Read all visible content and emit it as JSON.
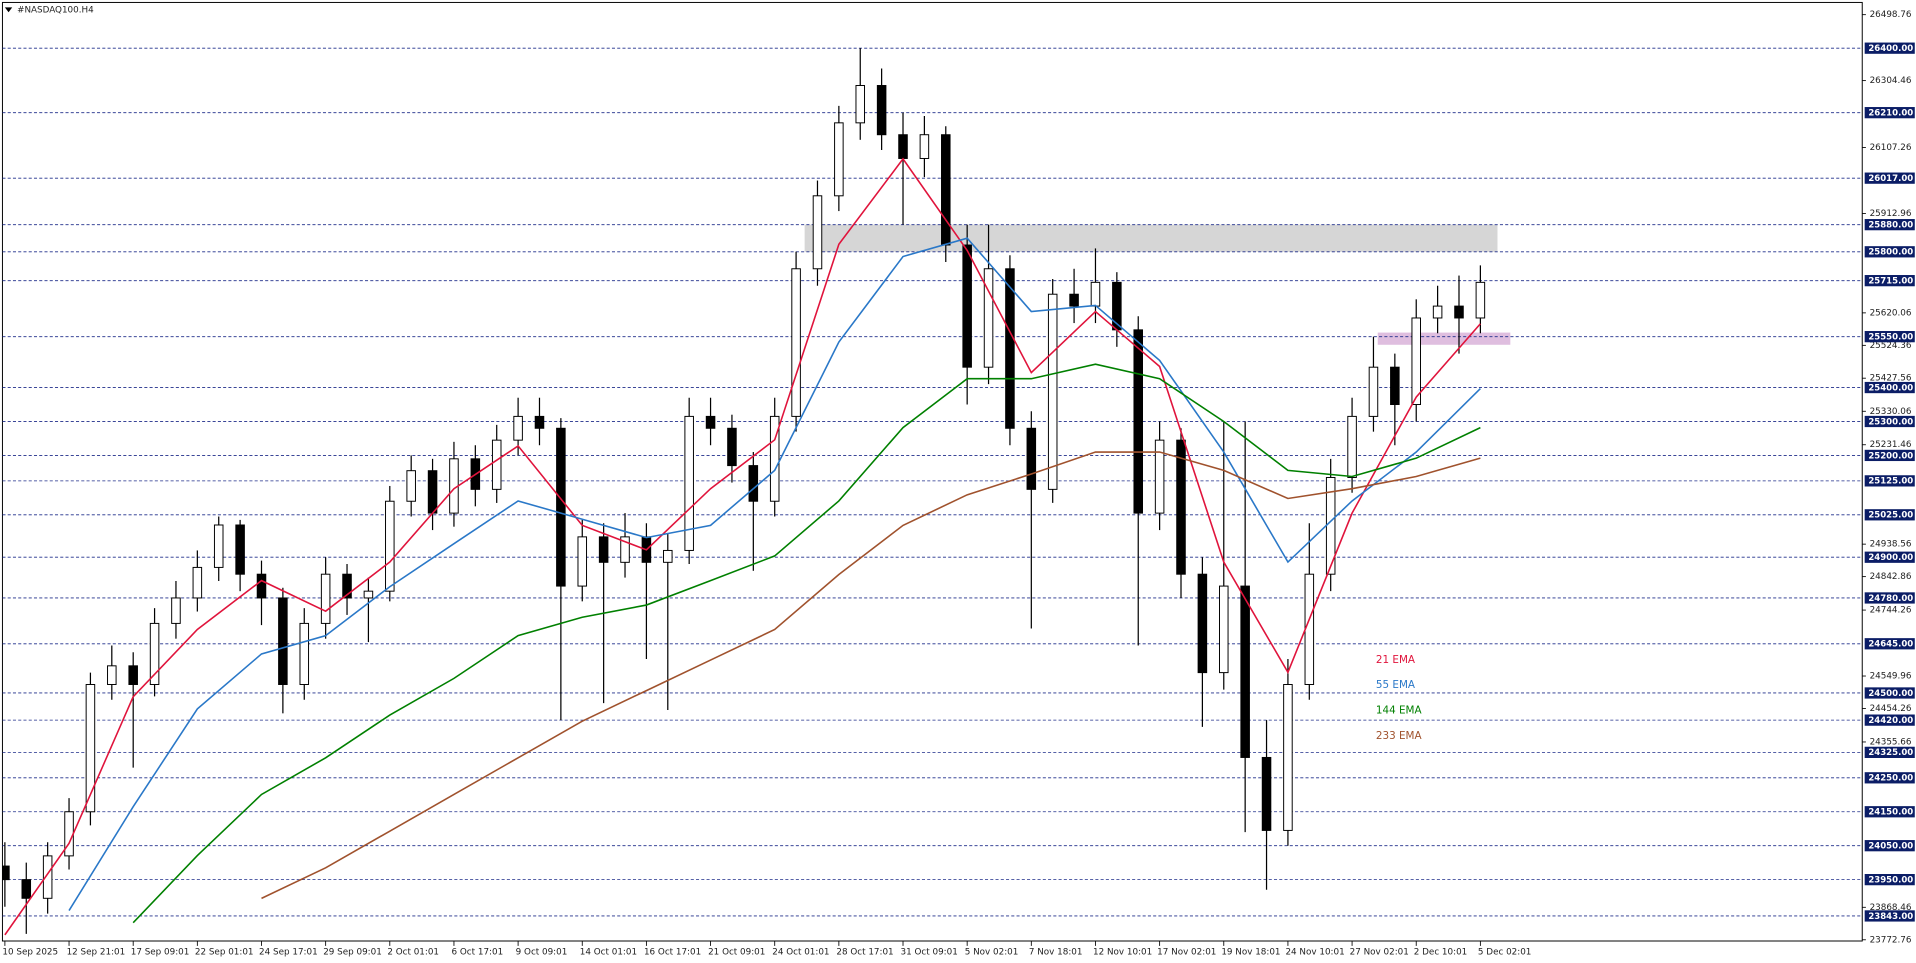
{
  "chart_data": {
    "type": "candlestick",
    "title": "#NASDAQ100.H4",
    "categories": [
      "10 Sep 2025",
      "12 Sep 21:01",
      "17 Sep 09:01",
      "22 Sep 01:01",
      "24 Sep 17:01",
      "29 Sep 09:01",
      "2 Oct 01:01",
      "6 Oct 17:01",
      "9 Oct 09:01",
      "14 Oct 01:01",
      "16 Oct 17:01",
      "21 Oct 09:01",
      "24 Oct 01:01",
      "28 Oct 17:01",
      "31 Oct 09:01",
      "5 Nov 02:01",
      "7 Nov 18:01",
      "12 Nov 10:01",
      "17 Nov 02:01",
      "19 Nov 18:01",
      "24 Nov 10:01",
      "27 Nov 02:01",
      "2 Dec 10:01",
      "5 Dec 02:01"
    ],
    "open": [
      23990,
      23950,
      23895,
      24020,
      24150,
      24525,
      24580,
      24525,
      24705,
      24780,
      24870,
      24995,
      24850,
      24780,
      24525,
      24705,
      24850,
      24780,
      24800,
      25065,
      25155,
      25030,
      25190,
      25100,
      25245,
      25315,
      25280,
      24815,
      24960,
      24885,
      24960,
      24885,
      24920,
      25315,
      25280,
      25170,
      25065,
      25315,
      25750,
      25965,
      26180,
      26290,
      26145,
      26075,
      26145,
      25820,
      25460,
      25750,
      25280,
      25100,
      25675,
      25640,
      25710,
      25570,
      25030,
      25245,
      24850,
      24560,
      24815,
      24310,
      24095,
      24525,
      24850,
      25135,
      25315,
      25460,
      25350,
      25605,
      25640,
      25605
    ],
    "high": [
      24060,
      24000,
      24060,
      24190,
      24560,
      24640,
      24620,
      24750,
      24830,
      24920,
      25020,
      25010,
      24890,
      24810,
      24750,
      24900,
      24880,
      24840,
      25110,
      25200,
      25190,
      25240,
      25230,
      25290,
      25370,
      25370,
      25310,
      25010,
      25000,
      25030,
      25000,
      24970,
      25370,
      25370,
      25320,
      25210,
      25370,
      25800,
      26010,
      26230,
      26400,
      26340,
      26210,
      26200,
      26170,
      25880,
      25880,
      25790,
      25330,
      25720,
      25750,
      25810,
      25740,
      25610,
      25300,
      25280,
      24900,
      25300,
      25300,
      24420,
      24600,
      25000,
      25190,
      25370,
      25550,
      25500,
      25660,
      25700,
      25730,
      25760
    ],
    "low": [
      23870,
      23790,
      23850,
      23980,
      24110,
      24480,
      24280,
      24490,
      24660,
      24740,
      24830,
      24800,
      24700,
      24440,
      24480,
      24660,
      24730,
      24650,
      24770,
      25020,
      24980,
      24990,
      25050,
      25060,
      25200,
      25230,
      24420,
      24770,
      24470,
      24840,
      24600,
      24450,
      24880,
      25230,
      25120,
      24860,
      25020,
      25270,
      25700,
      25920,
      26130,
      26100,
      25880,
      26020,
      25770,
      25350,
      25410,
      25230,
      24690,
      25060,
      25590,
      25590,
      25520,
      24640,
      24980,
      24780,
      24400,
      24510,
      24090,
      23920,
      24050,
      24480,
      24800,
      25090,
      25270,
      25230,
      25300,
      25560,
      25500,
      25560
    ],
    "close": [
      23950,
      23895,
      24020,
      24150,
      24525,
      24580,
      24525,
      24705,
      24780,
      24870,
      24995,
      24850,
      24780,
      24525,
      24705,
      24850,
      24780,
      24800,
      25065,
      25155,
      25030,
      25190,
      25100,
      25245,
      25315,
      25280,
      24815,
      24960,
      24885,
      24960,
      24885,
      24920,
      25315,
      25280,
      25170,
      25065,
      25315,
      25750,
      25965,
      26180,
      26290,
      26145,
      26075,
      26145,
      25820,
      25460,
      25750,
      25280,
      25100,
      25675,
      25640,
      25710,
      25570,
      25030,
      25245,
      24850,
      24560,
      24815,
      24310,
      24095,
      24525,
      24850,
      25135,
      25315,
      25460,
      25350,
      25605,
      25640,
      25605,
      25710
    ],
    "series": [
      {
        "name": "21 EMA",
        "color": "#e0143c",
        "values": [
          23787,
          24057,
          24489,
          24687,
          24831,
          24741,
          24886,
          25102,
          25228,
          24994,
          24922,
          25102,
          25246,
          25822,
          26074,
          25804,
          25444,
          25624,
          25462,
          24886,
          24561,
          25030,
          25372,
          25588
        ]
      },
      {
        "name": "55 EMA",
        "color": "#2a78c8",
        "values": [
          null,
          23859,
          24165,
          24453,
          24615,
          24669,
          24813,
          24940,
          25066,
          25012,
          24958,
          24994,
          25156,
          25534,
          25786,
          25840,
          25624,
          25642,
          25480,
          25210,
          24886,
          25066,
          25210,
          25397
        ]
      },
      {
        "name": "144 EMA",
        "color": "#008000",
        "values": [
          null,
          null,
          23823,
          24021,
          24201,
          24309,
          24435,
          24543,
          24669,
          24723,
          24759,
          24831,
          24904,
          25066,
          25282,
          25426,
          25426,
          25469,
          25426,
          25300,
          25156,
          25138,
          25192,
          25282
        ]
      },
      {
        "name": "233 EMA",
        "color": "#a0522d",
        "values": [
          null,
          null,
          null,
          null,
          23895,
          23985,
          24093,
          24201,
          24309,
          24417,
          24507,
          24597,
          24687,
          24849,
          24994,
          25084,
          25145,
          25210,
          25210,
          25156,
          25073,
          25102,
          25138,
          25192
        ]
      }
    ],
    "ylim": [
      23772.76,
      26498.76
    ],
    "yticks": [
      26498.76,
      26304.46,
      26107.26,
      25912.96,
      25620.06,
      25524.36,
      25427.56,
      25330.06,
      25231.46,
      24938.56,
      24842.86,
      24744.26,
      24549.96,
      24454.26,
      24355.66,
      23868.46,
      23772.76
    ],
    "levels": [
      {
        "value": 26400,
        "label": "26400.00"
      },
      {
        "value": 26210,
        "label": "26210.00"
      },
      {
        "value": 26017,
        "label": "26017.00"
      },
      {
        "value": 25880,
        "label": "25880.00"
      },
      {
        "value": 25800,
        "label": "25800.00"
      },
      {
        "value": 25715,
        "label": "25715.00"
      },
      {
        "value": 25550,
        "label": "25550.00"
      },
      {
        "value": 25400,
        "label": "25400.00"
      },
      {
        "value": 25300,
        "label": "25300.00"
      },
      {
        "value": 25200,
        "label": "25200.00"
      },
      {
        "value": 25125,
        "label": "25125.00"
      },
      {
        "value": 25025,
        "label": "25025.00"
      },
      {
        "value": 24900,
        "label": "24900.00"
      },
      {
        "value": 24780,
        "label": "24780.00"
      },
      {
        "value": 24645,
        "label": "24645.00"
      },
      {
        "value": 24500,
        "label": "24500.00"
      },
      {
        "value": 24420,
        "label": "24420.00"
      },
      {
        "value": 24325,
        "label": "24325.00"
      },
      {
        "value": 24250,
        "label": "24250.00"
      },
      {
        "value": 24150,
        "label": "24150.00"
      },
      {
        "value": 24050,
        "label": "24050.00"
      },
      {
        "value": 23950,
        "label": "23950.00"
      },
      {
        "value": 23843,
        "label": "23843.00"
      }
    ],
    "zones": [
      {
        "from": 25800,
        "to": 25880,
        "start": 37.4,
        "end": 69.8,
        "color": "#c8c8c8"
      },
      {
        "from": 25526,
        "to": 25562,
        "start": 64.2,
        "end": 70.4,
        "color": "#d4a8d4"
      }
    ]
  }
}
